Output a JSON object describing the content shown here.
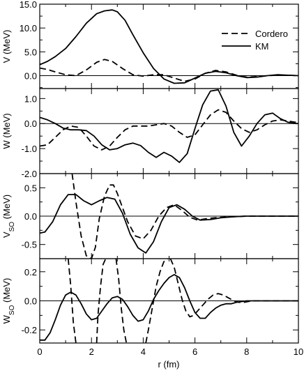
{
  "chart_data": {
    "type": "line",
    "xlabel": "r (fm)",
    "xlim": [
      0,
      10
    ],
    "xticks": [
      0,
      2,
      4,
      6,
      8,
      10
    ],
    "legend": {
      "placement": "top-right",
      "entries": [
        {
          "label": "Cordero",
          "style": "dashed"
        },
        {
          "label": "KM",
          "style": "solid"
        }
      ]
    },
    "panels": [
      {
        "id": "V",
        "ylabel_main": "V (MeV)",
        "ylabel_sub": "",
        "ylim": [
          -2.7,
          15.0
        ],
        "yticks": [
          {
            "v": 15.0,
            "t": "15.0"
          },
          {
            "v": 10.0,
            "t": "10.0"
          },
          {
            "v": 5.0,
            "t": "5.0"
          },
          {
            "v": 0.0,
            "t": "0.0"
          }
        ],
        "minor_yticks": [
          12.5,
          7.5,
          2.5,
          -2.5
        ],
        "series": [
          {
            "name": "KM",
            "style": "solid",
            "x": [
              0,
              0.3,
              0.6,
              1.0,
              1.4,
              1.8,
              2.2,
              2.5,
              2.8,
              3.0,
              3.3,
              3.6,
              4.0,
              4.4,
              4.8,
              5.2,
              5.6,
              6.0,
              6.4,
              6.8,
              7.2,
              7.6,
              8.0,
              8.4,
              8.8,
              9.2,
              9.6,
              10.0
            ],
            "y": [
              2.3,
              3.0,
              4.0,
              5.7,
              8.2,
              11.0,
              13.0,
              13.6,
              13.8,
              13.4,
              11.6,
              8.6,
              4.8,
              1.5,
              -0.7,
              -1.6,
              -1.5,
              -0.5,
              0.5,
              0.9,
              0.6,
              0.0,
              -0.4,
              -0.3,
              0.0,
              0.2,
              0.1,
              0.0
            ]
          },
          {
            "name": "Cordero",
            "style": "dashed",
            "x": [
              0,
              0.3,
              0.6,
              1.0,
              1.4,
              1.8,
              2.2,
              2.5,
              2.8,
              3.2,
              3.6,
              4.0,
              4.4,
              4.8,
              5.2,
              5.6,
              6.0,
              6.4,
              6.8,
              7.2,
              7.6,
              8.0,
              8.4,
              8.8,
              9.2,
              9.6,
              10.0
            ],
            "y": [
              1.6,
              1.3,
              0.8,
              0.2,
              0.0,
              1.2,
              2.8,
              3.4,
              3.0,
              1.5,
              0.2,
              -0.1,
              0.2,
              0.2,
              -0.5,
              -1.2,
              -0.7,
              0.5,
              1.1,
              0.8,
              0.1,
              -0.3,
              -0.2,
              0.0,
              0.1,
              0.1,
              0.0
            ]
          }
        ]
      },
      {
        "id": "W",
        "ylabel_main": "W (MeV)",
        "ylabel_sub": "",
        "ylim": [
          -2.0,
          1.4
        ],
        "yticks": [
          {
            "v": 1.0,
            "t": "1.0"
          },
          {
            "v": 0.0,
            "t": "0.0"
          },
          {
            "v": -1.0,
            "t": "-1.0"
          },
          {
            "v": -2.0,
            "t": "-2.0"
          }
        ],
        "minor_yticks": [
          0.5,
          -0.5,
          -1.5
        ],
        "series": [
          {
            "name": "KM",
            "style": "solid",
            "x": [
              0,
              0.3,
              0.6,
              0.9,
              1.2,
              1.5,
              1.8,
              2.1,
              2.4,
              2.7,
              3.0,
              3.3,
              3.6,
              3.9,
              4.2,
              4.5,
              4.8,
              5.1,
              5.4,
              5.7,
              6.0,
              6.3,
              6.6,
              6.9,
              7.2,
              7.5,
              7.8,
              8.1,
              8.4,
              8.7,
              9.0,
              9.3,
              9.6,
              9.9,
              10.0
            ],
            "y": [
              0.25,
              0.15,
              0.0,
              -0.18,
              -0.25,
              -0.25,
              -0.28,
              -0.5,
              -0.85,
              -1.05,
              -1.0,
              -0.85,
              -0.78,
              -0.88,
              -1.15,
              -1.35,
              -1.15,
              -1.3,
              -1.55,
              -1.2,
              -0.2,
              0.75,
              1.3,
              1.35,
              0.7,
              -0.35,
              -0.9,
              -0.5,
              0.0,
              0.35,
              0.42,
              0.2,
              0.05,
              0.0,
              0.0
            ]
          },
          {
            "name": "Cordero",
            "style": "dashed",
            "x": [
              0,
              0.3,
              0.6,
              0.9,
              1.2,
              1.5,
              1.8,
              2.1,
              2.4,
              2.7,
              3.0,
              3.3,
              3.6,
              3.9,
              4.2,
              4.5,
              4.8,
              5.1,
              5.4,
              5.7,
              6.0,
              6.3,
              6.6,
              6.9,
              7.2,
              7.5,
              7.8,
              8.1,
              8.4,
              8.7,
              9.0,
              9.3,
              9.6,
              9.9,
              10.0
            ],
            "y": [
              -0.9,
              -0.85,
              -0.55,
              -0.25,
              -0.1,
              -0.15,
              -0.5,
              -0.9,
              -1.05,
              -0.9,
              -0.55,
              -0.25,
              -0.1,
              -0.1,
              -0.1,
              -0.05,
              0.0,
              -0.1,
              -0.35,
              -0.55,
              -0.45,
              -0.05,
              0.35,
              0.55,
              0.45,
              0.1,
              -0.2,
              -0.35,
              -0.25,
              -0.05,
              0.1,
              0.15,
              0.1,
              0.05,
              0.0
            ]
          }
        ]
      },
      {
        "id": "VSO",
        "ylabel_main": "V",
        "ylabel_sub": "SO",
        "ylabel_tail": " (MeV)",
        "ylim": [
          -0.75,
          0.75
        ],
        "yticks": [
          {
            "v": 0.5,
            "t": "0.5"
          },
          {
            "v": 0.0,
            "t": "0.0"
          },
          {
            "v": -0.5,
            "t": "-0.5"
          }
        ],
        "minor_yticks": [
          0.25,
          -0.25
        ],
        "series": [
          {
            "name": "KM",
            "style": "solid",
            "x": [
              0,
              0.2,
              0.5,
              0.8,
              1.1,
              1.4,
              1.7,
              2.0,
              2.3,
              2.6,
              2.9,
              3.2,
              3.5,
              3.8,
              4.1,
              4.4,
              4.7,
              5.0,
              5.3,
              5.6,
              5.9,
              6.2,
              6.6,
              7.0,
              7.5,
              8.0,
              9.0,
              10.0
            ],
            "y": [
              -0.3,
              -0.28,
              -0.1,
              0.2,
              0.38,
              0.38,
              0.27,
              0.2,
              0.27,
              0.33,
              0.3,
              0.05,
              -0.32,
              -0.56,
              -0.65,
              -0.45,
              -0.1,
              0.15,
              0.2,
              0.12,
              0.0,
              -0.07,
              -0.06,
              -0.03,
              -0.01,
              0.0,
              0.0,
              0.0
            ]
          },
          {
            "name": "Cordero",
            "style": "dashed",
            "x": [
              1.25,
              1.4,
              1.6,
              1.8,
              2.0,
              2.15,
              2.3,
              2.5,
              2.7,
              2.85,
              3.0,
              3.2,
              3.4,
              3.7,
              4.0,
              4.3,
              4.6,
              4.9,
              5.2,
              5.5,
              5.8,
              6.1,
              6.5,
              7.0,
              7.5,
              8.0,
              9.0,
              10.0
            ],
            "y": [
              0.75,
              0.25,
              -0.35,
              -0.7,
              -0.75,
              -0.55,
              -0.05,
              0.35,
              0.55,
              0.55,
              0.4,
              0.15,
              -0.1,
              -0.35,
              -0.4,
              -0.25,
              0.0,
              0.15,
              0.2,
              0.1,
              -0.02,
              -0.07,
              -0.04,
              -0.02,
              -0.01,
              0.0,
              0.0,
              0.0
            ]
          }
        ]
      },
      {
        "id": "WSO",
        "ylabel_main": "W",
        "ylabel_sub": "SO",
        "ylabel_tail": " (MeV)",
        "ylim": [
          -0.29,
          0.29
        ],
        "yticks": [
          {
            "v": 0.2,
            "t": "0.2"
          },
          {
            "v": 0.0,
            "t": "0.0"
          },
          {
            "v": -0.2,
            "t": "-0.2"
          }
        ],
        "minor_yticks": [
          0.1,
          -0.1
        ],
        "series": [
          {
            "name": "KM",
            "style": "solid",
            "x": [
              0,
              0.2,
              0.4,
              0.6,
              0.8,
              1.0,
              1.2,
              1.4,
              1.6,
              1.8,
              2.0,
              2.2,
              2.4,
              2.6,
              2.8,
              3.0,
              3.2,
              3.4,
              3.6,
              3.8,
              4.0,
              4.2,
              4.4,
              4.6,
              4.8,
              5.0,
              5.2,
              5.4,
              5.6,
              5.8,
              6.0,
              6.2,
              6.4,
              6.6,
              6.8,
              7.0,
              7.2,
              7.4,
              7.6,
              8.0,
              8.5,
              9.0,
              10.0
            ],
            "y": [
              -0.27,
              -0.27,
              -0.22,
              -0.13,
              -0.03,
              0.04,
              0.06,
              0.04,
              -0.02,
              -0.09,
              -0.13,
              -0.12,
              -0.07,
              -0.02,
              0.02,
              0.03,
              0.01,
              -0.04,
              -0.1,
              -0.14,
              -0.13,
              -0.07,
              0.01,
              0.07,
              0.12,
              0.16,
              0.18,
              0.16,
              0.09,
              0.0,
              -0.08,
              -0.12,
              -0.12,
              -0.08,
              -0.05,
              -0.03,
              -0.02,
              -0.02,
              -0.01,
              0.0,
              0.0,
              0.0,
              0.0
            ]
          },
          {
            "name": "Cordero",
            "style": "dashed",
            "x": [
              1.1,
              1.2,
              1.3,
              1.4
            ],
            "y": [
              0.29,
              0.1,
              -0.15,
              -0.29
            ]
          },
          {
            "name": "Cordero",
            "style": "dashed",
            "x": [
              2.2,
              2.25,
              2.35,
              2.45,
              2.55
            ],
            "y": [
              -0.29,
              -0.1,
              0.1,
              0.25,
              0.29
            ]
          },
          {
            "name": "Cordero",
            "style": "dashed",
            "x": [
              2.95,
              3.05,
              3.15,
              3.25,
              3.35
            ],
            "y": [
              0.29,
              0.15,
              -0.05,
              -0.2,
              -0.29
            ]
          },
          {
            "name": "Cordero",
            "style": "dashed",
            "x": [
              4.1,
              4.2,
              4.35,
              4.5,
              4.65,
              4.8,
              4.95
            ],
            "y": [
              -0.29,
              -0.2,
              -0.05,
              0.1,
              0.2,
              0.27,
              0.29
            ]
          },
          {
            "name": "Cordero",
            "style": "dashed",
            "x": [
              5.05,
              5.2,
              5.35,
              5.5,
              5.65,
              5.8,
              5.95,
              6.1,
              6.3,
              6.5,
              6.7,
              6.9,
              7.1,
              7.3,
              7.5,
              7.7,
              7.9,
              8.2,
              8.5,
              9.0,
              9.5,
              10.0
            ],
            "y": [
              0.29,
              0.23,
              0.12,
              0.01,
              -0.07,
              -0.11,
              -0.1,
              -0.07,
              -0.03,
              0.01,
              0.04,
              0.05,
              0.04,
              0.02,
              0.0,
              -0.01,
              -0.01,
              0.0,
              0.0,
              0.0,
              0.0,
              0.0
            ]
          }
        ]
      }
    ]
  }
}
